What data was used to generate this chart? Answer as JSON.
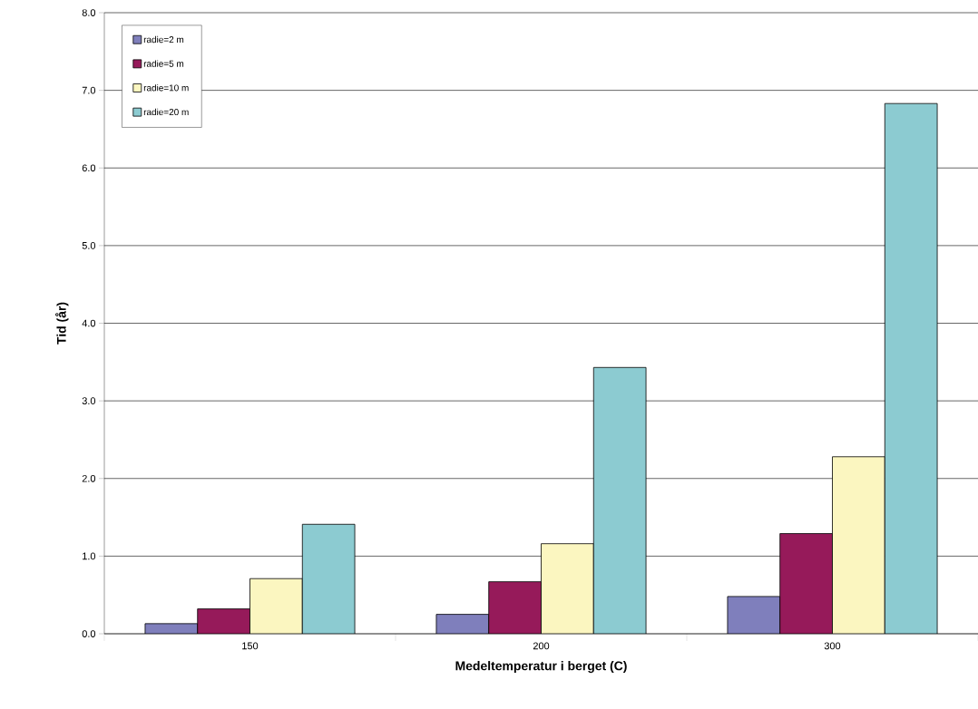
{
  "chart_data": {
    "type": "bar",
    "xlabel": "Medeltemperatur i berget (C)",
    "ylabel": "Tid (år)",
    "categories": [
      "150",
      "200",
      "300"
    ],
    "series": [
      {
        "name": "radie=2 m",
        "color": "#7f7fbc",
        "values": [
          0.13,
          0.25,
          0.48
        ]
      },
      {
        "name": "radie=5 m",
        "color": "#961a5a",
        "values": [
          0.32,
          0.67,
          1.29
        ]
      },
      {
        "name": "radie=10 m",
        "color": "#fbf6c0",
        "values": [
          0.71,
          1.16,
          2.28
        ]
      },
      {
        "name": "radie=20 m",
        "color": "#8ccbd1",
        "values": [
          1.41,
          3.43,
          6.83
        ]
      }
    ],
    "ylim": [
      0,
      8
    ],
    "yticks": [
      {
        "value": 0,
        "label": "0.0"
      },
      {
        "value": 1,
        "label": "1.0"
      },
      {
        "value": 2,
        "label": "2.0"
      },
      {
        "value": 3,
        "label": "3.0"
      },
      {
        "value": 4,
        "label": "4.0"
      },
      {
        "value": 5,
        "label": "5.0"
      },
      {
        "value": 6,
        "label": "6.0"
      },
      {
        "value": 7,
        "label": "7.0"
      },
      {
        "value": 8,
        "label": "8.0"
      }
    ],
    "grid": "y",
    "legend": "top left"
  }
}
